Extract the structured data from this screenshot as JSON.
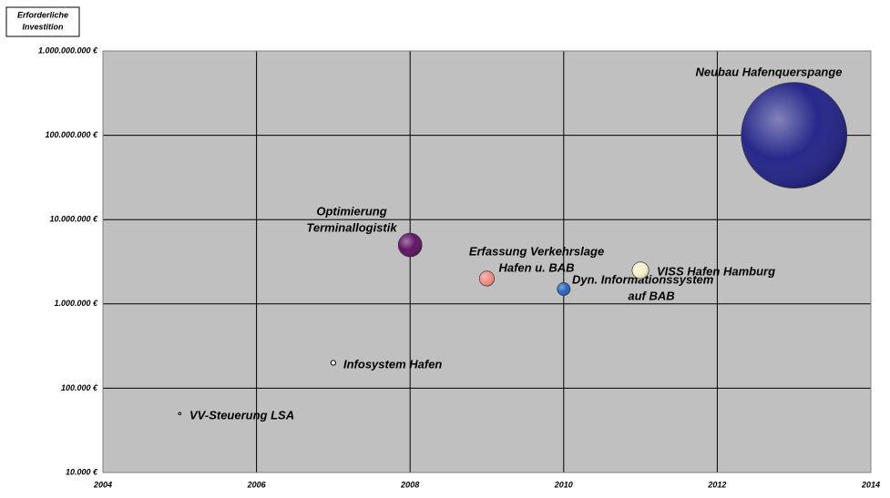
{
  "chart_data": {
    "type": "bubble",
    "ylabel": [
      "Erforderliche",
      "Investition"
    ],
    "log_y": true,
    "grid": true,
    "xlim": [
      2004,
      2014
    ],
    "xticks": [
      2004,
      2006,
      2008,
      2010,
      2012,
      2014
    ],
    "ylim": [
      10000,
      1000000000
    ],
    "yticks": [
      {
        "value": 10000,
        "label": "10.000 €"
      },
      {
        "value": 100000,
        "label": "100.000 €"
      },
      {
        "value": 1000000,
        "label": "1.000.000 €"
      },
      {
        "value": 10000000,
        "label": "10.000.000 €"
      },
      {
        "value": 100000000,
        "label": "100.000.000 €"
      },
      {
        "value": 1000000000,
        "label": "1.000.000.000 €"
      }
    ],
    "labels": [
      [
        "VV-Steuerung LSA"
      ],
      [
        "Infosystem Hafen"
      ],
      [
        "Optimierung",
        "Terminallogistik"
      ],
      [
        "Erfassung Verkehrslage",
        "Hafen u. BAB"
      ],
      [
        "Dyn. Informationssystem",
        "auf BAB"
      ],
      [
        "VISS Hafen Hamburg"
      ],
      [
        "Neubau Hafenquerspange"
      ]
    ],
    "x": [
      2005,
      2007,
      2008,
      2009,
      2010,
      2011,
      2013
    ],
    "values": [
      50000,
      200000,
      5000000,
      2000000,
      1500000,
      2500000,
      100000000
    ],
    "colors": [
      "#ffffff",
      "#ffffff",
      "#5a0a5e",
      "#f28a80",
      "#1f5fc0",
      "#f5f0c8",
      "#1c1c84"
    ]
  }
}
